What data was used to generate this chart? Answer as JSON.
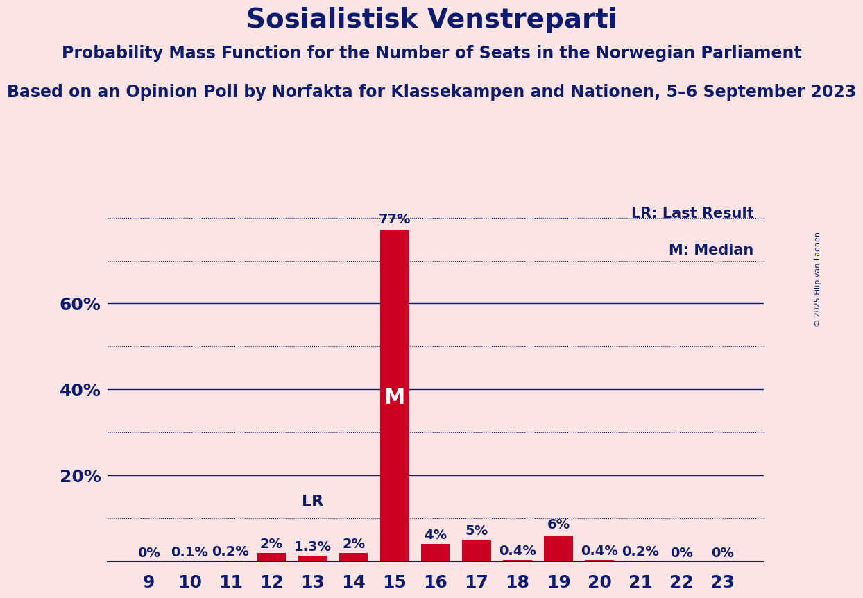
{
  "title": "Sosialistisk Venstreparti",
  "subtitle1": "Probability Mass Function for the Number of Seats in the Norwegian Parliament",
  "subtitle2": "Based on an Opinion Poll by Norfakta for Klassekampen and Nationen, 5–6 September 2023",
  "copyright": "© 2025 Filip van Laenen",
  "legend_lr": "LR: Last Result",
  "legend_m": "M: Median",
  "seats": [
    9,
    10,
    11,
    12,
    13,
    14,
    15,
    16,
    17,
    18,
    19,
    20,
    21,
    22,
    23
  ],
  "probabilities": [
    0.0,
    0.1,
    0.2,
    2.0,
    1.3,
    2.0,
    77.0,
    4.0,
    5.0,
    0.4,
    6.0,
    0.4,
    0.2,
    0.0,
    0.0
  ],
  "labels": [
    "0%",
    "0.1%",
    "0.2%",
    "2%",
    "1.3%",
    "2%",
    "77%",
    "4%",
    "5%",
    "0.4%",
    "6%",
    "0.4%",
    "0.2%",
    "0%",
    "0%"
  ],
  "bar_color": "#cc0022",
  "background_color": "#fce4e4",
  "text_color": "#0d1b6e",
  "median_seat": 15,
  "last_result_seat": 13,
  "median_label": "M",
  "lr_label": "LR",
  "ylim": [
    0,
    85
  ],
  "solid_gridlines": [
    20,
    40,
    60
  ],
  "dotted_gridlines": [
    10,
    30,
    50,
    70,
    80
  ],
  "title_fontsize": 28,
  "subtitle1_fontsize": 17,
  "subtitle2_fontsize": 17,
  "bar_label_fontsize": 14,
  "tick_fontsize": 18,
  "legend_fontsize": 15,
  "lr_fontsize": 16,
  "median_fontsize": 22
}
